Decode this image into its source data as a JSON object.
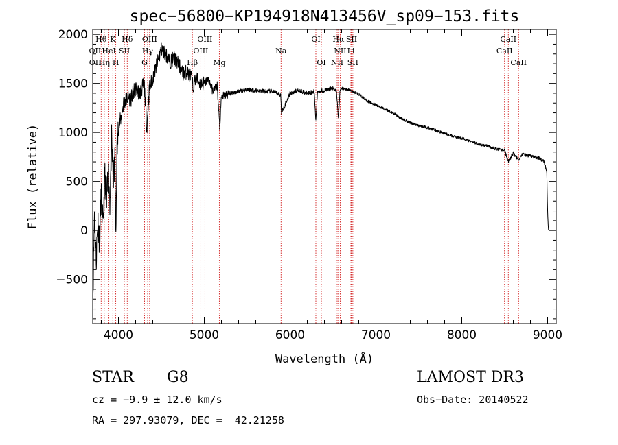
{
  "chart_data": {
    "type": "line",
    "title": "spec−56800−KP194918N413456V_sp09−153.fits",
    "xlabel": "Wavelength (Å)",
    "ylabel": "Flux (relative)",
    "xlim": [
      3700,
      9100
    ],
    "ylim": [
      -950,
      2050
    ],
    "xticks": [
      4000,
      5000,
      6000,
      7000,
      8000,
      9000
    ],
    "yticks": [
      -500,
      0,
      500,
      1000,
      1500,
      2000
    ],
    "grid": false,
    "legend": "none",
    "colors": {
      "spectrum": "#000000",
      "lines": "#cc0000"
    },
    "series": [
      {
        "x": [
          3700,
          3720,
          3740,
          3760,
          3780,
          3800,
          3820,
          3840,
          3860,
          3880,
          3900,
          3920,
          3940,
          3960,
          3970,
          3980,
          4000,
          4030,
          4060,
          4100,
          4150,
          4200,
          4250,
          4300,
          4330,
          4360,
          4400,
          4450,
          4500,
          4550,
          4600,
          4650,
          4700,
          4750,
          4800,
          4850,
          4870,
          4900,
          4950,
          5000,
          5050,
          5100,
          5150,
          5180,
          5200,
          5300,
          5400,
          5500,
          5600,
          5700,
          5800,
          5890,
          5900,
          6000,
          6100,
          6200,
          6280,
          6300,
          6320,
          6400,
          6500,
          6540,
          6563,
          6580,
          6600,
          6700,
          6800,
          6900,
          7000,
          7100,
          7200,
          7300,
          7400,
          7500,
          7600,
          7700,
          7800,
          7900,
          8000,
          8100,
          8200,
          8300,
          8400,
          8498,
          8542,
          8600,
          8662,
          8700,
          8800,
          8900,
          8960,
          8990,
          9000,
          9010
        ],
        "values": [
          -800,
          200,
          -300,
          100,
          -100,
          400,
          0,
          600,
          200,
          650,
          300,
          900,
          500,
          700,
          -150,
          750,
          1050,
          1150,
          1300,
          1350,
          1350,
          1450,
          1400,
          1500,
          1050,
          1450,
          1550,
          1700,
          1850,
          1800,
          1720,
          1760,
          1700,
          1600,
          1620,
          1560,
          1450,
          1560,
          1500,
          1500,
          1540,
          1420,
          1480,
          1050,
          1360,
          1400,
          1420,
          1440,
          1430,
          1420,
          1420,
          1380,
          1200,
          1400,
          1430,
          1400,
          1420,
          1110,
          1420,
          1430,
          1450,
          1420,
          1140,
          1420,
          1450,
          1430,
          1390,
          1320,
          1280,
          1240,
          1200,
          1140,
          1100,
          1070,
          1050,
          1020,
          990,
          960,
          940,
          910,
          880,
          860,
          830,
          820,
          700,
          790,
          720,
          780,
          760,
          740,
          700,
          600,
          200,
          20
        ]
      }
    ],
    "lines": [
      {
        "name": "OII",
        "x": 3727
      },
      {
        "name": "OII",
        "x": 3729
      },
      {
        "name": "Hθ",
        "x": 3798
      },
      {
        "name": "Hη",
        "x": 3835
      },
      {
        "name": "HeI",
        "x": 3889
      },
      {
        "name": "K",
        "x": 3934
      },
      {
        "name": "H",
        "x": 3969
      },
      {
        "name": "SII",
        "x": 4069
      },
      {
        "name": "Hδ",
        "x": 4102
      },
      {
        "name": "G",
        "x": 4304
      },
      {
        "name": "Hγ",
        "x": 4340
      },
      {
        "name": "OIII",
        "x": 4363
      },
      {
        "name": "Hβ",
        "x": 4861
      },
      {
        "name": "OIII",
        "x": 4959
      },
      {
        "name": "OIII",
        "x": 5007
      },
      {
        "name": "Mg",
        "x": 5175
      },
      {
        "name": "Na",
        "x": 5894
      },
      {
        "name": "OI",
        "x": 6300
      },
      {
        "name": "OI",
        "x": 6364
      },
      {
        "name": "NII",
        "x": 6548
      },
      {
        "name": "Hα",
        "x": 6563
      },
      {
        "name": "NII",
        "x": 6583
      },
      {
        "name": "Li",
        "x": 6708
      },
      {
        "name": "SII",
        "x": 6716
      },
      {
        "name": "SII",
        "x": 6731
      },
      {
        "name": "CaII",
        "x": 8498
      },
      {
        "name": "CaII",
        "x": 8542
      },
      {
        "name": "CaII",
        "x": 8662
      }
    ],
    "line_labels": [
      {
        "text": "Hθ",
        "x": 3798,
        "row": 0
      },
      {
        "text": "OII",
        "x": 3727,
        "row": 1
      },
      {
        "text": "OII",
        "x": 3729,
        "row": 2
      },
      {
        "text": "K",
        "x": 3934,
        "row": 0
      },
      {
        "text": "HeI",
        "x": 3889,
        "row": 1
      },
      {
        "text": "Hη",
        "x": 3835,
        "row": 2
      },
      {
        "text": "Hδ",
        "x": 4102,
        "row": 0
      },
      {
        "text": "SII",
        "x": 4069,
        "row": 1
      },
      {
        "text": "H",
        "x": 3969,
        "row": 2
      },
      {
        "text": "OIII",
        "x": 4363,
        "row": 0
      },
      {
        "text": "Hγ",
        "x": 4340,
        "row": 1
      },
      {
        "text": "G",
        "x": 4304,
        "row": 2
      },
      {
        "text": "OIII",
        "x": 5007,
        "row": 0
      },
      {
        "text": "OIII",
        "x": 4959,
        "row": 1
      },
      {
        "text": "Hβ",
        "x": 4861,
        "row": 2
      },
      {
        "text": "Mg",
        "x": 5175,
        "row": 2
      },
      {
        "text": "Na",
        "x": 5894,
        "row": 1
      },
      {
        "text": "OI",
        "x": 6300,
        "row": 0
      },
      {
        "text": "OI",
        "x": 6364,
        "row": 2
      },
      {
        "text": "Hα",
        "x": 6563,
        "row": 0
      },
      {
        "text": "SII",
        "x": 6716,
        "row": 0
      },
      {
        "text": "NII",
        "x": 6583,
        "row": 1
      },
      {
        "text": "Li",
        "x": 6708,
        "row": 1
      },
      {
        "text": "NII",
        "x": 6548,
        "row": 2
      },
      {
        "text": "SII",
        "x": 6731,
        "row": 2
      },
      {
        "text": "CaII",
        "x": 8542,
        "row": 0
      },
      {
        "text": "CaII",
        "x": 8498,
        "row": 1
      },
      {
        "text": "CaII",
        "x": 8662,
        "row": 2
      }
    ]
  },
  "info": {
    "class": "STAR",
    "subclass": "G8",
    "survey": "LAMOST DR3",
    "cz": "cz = −9.9 ± 12.0 km/s",
    "obs_date": "Obs−Date: 20140522",
    "coords": "RA = 297.93079, DEC =  42.21258"
  }
}
